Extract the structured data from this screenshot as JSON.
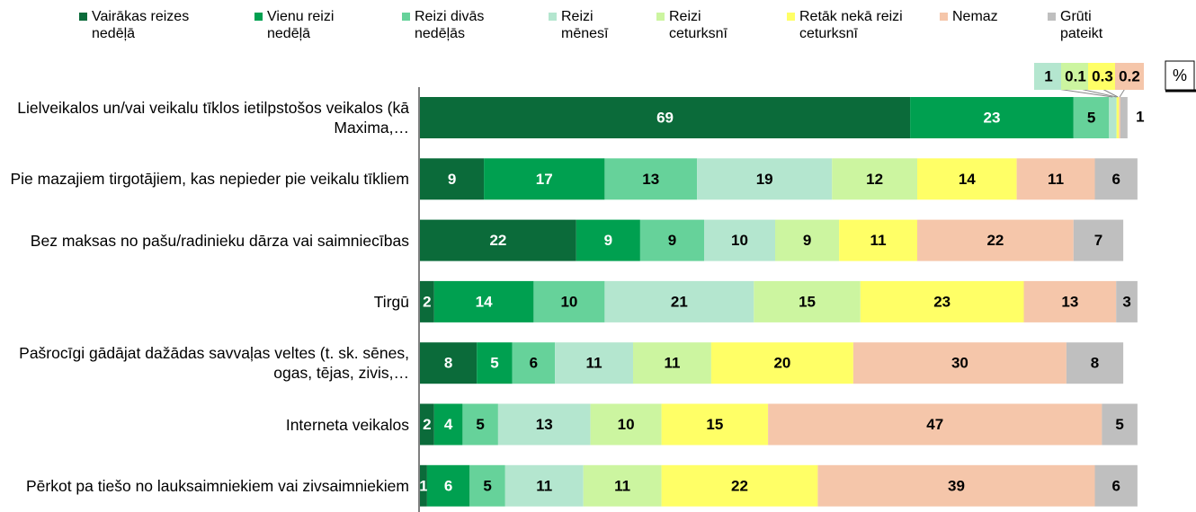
{
  "chart_data": {
    "type": "stacked-bar-horizontal",
    "unit_label": "%",
    "xlim": [
      0,
      100
    ],
    "categories": [
      "Lielveikalos un/vai veikalu tīklos ietilpstošos veikalos (kā Maxima,…",
      "Pie mazajiem tirgotājiem, kas nepieder pie veikalu tīkliem",
      "Bez maksas no pašu/radinieku dārza vai saimniecības",
      "Tirgū",
      "Pašrocīgi gādājat dažādas savvaļas veltes (t. sk. sēnes, ogas, tējas, zivis,…",
      "Interneta veikalos",
      "Pērkot pa tiešo no lauksaimniekiem vai zivsaimniekiem"
    ],
    "series": [
      {
        "name": "Vairākas reizes nedēļā",
        "color": "#0b6b3a",
        "values": [
          69,
          9,
          22,
          2,
          8,
          2,
          1
        ]
      },
      {
        "name": "Vienu reizi nedēļā",
        "color": "#00a050",
        "values": [
          23,
          17,
          9,
          14,
          5,
          4,
          6
        ]
      },
      {
        "name": "Reizi divās nedēļās",
        "color": "#66d29a",
        "values": [
          5,
          13,
          9,
          10,
          6,
          5,
          5
        ]
      },
      {
        "name": "Reizi mēnesī",
        "color": "#b4e6cf",
        "values": [
          1,
          19,
          10,
          21,
          11,
          13,
          11
        ]
      },
      {
        "name": "Reizi ceturksnī",
        "color": "#ccf5a0",
        "values": [
          0.1,
          12,
          9,
          15,
          11,
          10,
          11
        ]
      },
      {
        "name": "Retāk nekā reizi ceturksnī",
        "color": "#ffff66",
        "values": [
          0.3,
          14,
          11,
          23,
          20,
          15,
          22
        ]
      },
      {
        "name": "Nemaz",
        "color": "#f5c6aa",
        "values": [
          0.2,
          11,
          22,
          13,
          30,
          47,
          39
        ]
      },
      {
        "name": "Grūti pateikt",
        "color": "#bfbfbf",
        "values": [
          1,
          6,
          7,
          3,
          8,
          5,
          6
        ]
      }
    ]
  }
}
